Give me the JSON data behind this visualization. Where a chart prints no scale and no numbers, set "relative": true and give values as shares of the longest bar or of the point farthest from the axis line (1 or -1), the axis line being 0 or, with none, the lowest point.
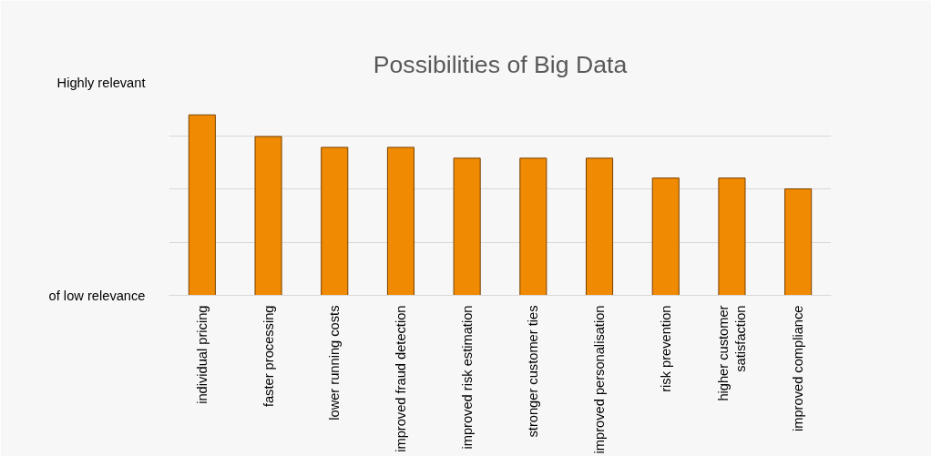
{
  "chart_data": {
    "type": "bar",
    "title": "Possibilities of Big Data",
    "categories": [
      "individual pricing",
      "faster processing",
      "lower running costs",
      "improved fraud detection",
      "improved risk estimation",
      "stronger customer ties",
      "improved personalisation",
      "risk prevention",
      "higher customer\nsatisfaction",
      "improved compliance"
    ],
    "values": [
      1,
      0.88,
      0.82,
      0.82,
      0.76,
      0.76,
      0.76,
      0.65,
      0.65,
      0.59
    ],
    "relative": true,
    "color": "#f08a00",
    "annotations": [
      "Highly relevant",
      "of low relevance"
    ],
    "grid": "y"
  }
}
